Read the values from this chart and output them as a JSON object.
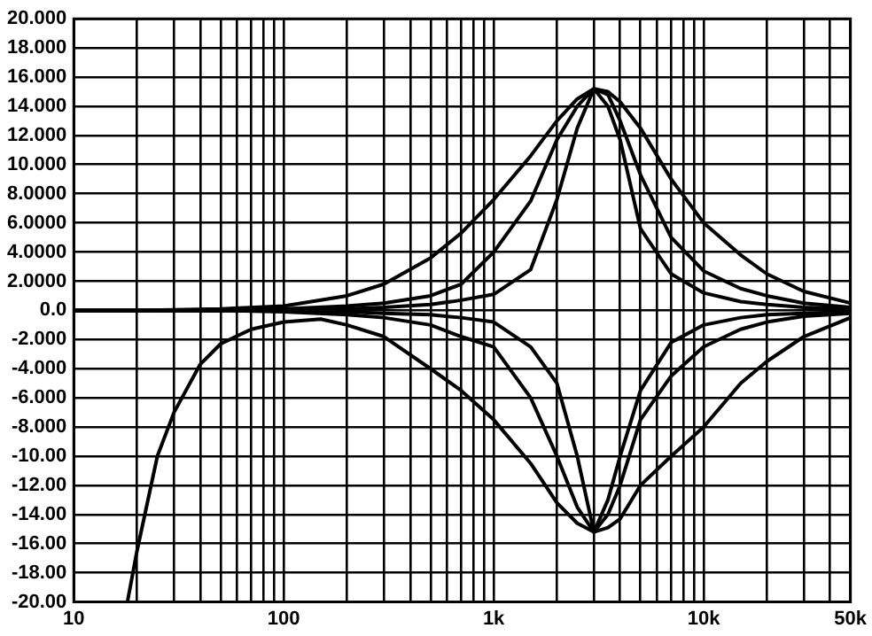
{
  "chart_data": {
    "type": "line",
    "log": "x",
    "grid": true,
    "legend": false,
    "xlim": [
      10,
      50000
    ],
    "xticks": [
      10,
      {
        "value": 20,
        "label": null
      },
      {
        "value": 30,
        "label": null
      },
      {
        "value": 40,
        "label": null
      },
      {
        "value": 50,
        "label": null
      },
      {
        "value": 60,
        "label": null
      },
      {
        "value": 70,
        "label": null
      },
      {
        "value": 80,
        "label": null
      },
      {
        "value": 90,
        "label": null
      },
      100,
      {
        "value": 200,
        "label": null
      },
      {
        "value": 300,
        "label": null
      },
      {
        "value": 400,
        "label": null
      },
      {
        "value": 500,
        "label": null
      },
      {
        "value": 600,
        "label": null
      },
      {
        "value": 700,
        "label": null
      },
      {
        "value": 800,
        "label": null
      },
      {
        "value": 900,
        "label": null
      },
      {
        "value": 1000,
        "label": "1k"
      },
      {
        "value": 2000,
        "label": null
      },
      {
        "value": 3000,
        "label": null
      },
      {
        "value": 4000,
        "label": null
      },
      {
        "value": 5000,
        "label": null
      },
      {
        "value": 6000,
        "label": null
      },
      {
        "value": 7000,
        "label": null
      },
      {
        "value": 8000,
        "label": null
      },
      {
        "value": 9000,
        "label": null
      },
      {
        "value": 10000,
        "label": "10k"
      },
      {
        "value": 20000,
        "label": null
      },
      {
        "value": 30000,
        "label": null
      },
      {
        "value": 40000,
        "label": null
      },
      {
        "value": 50000,
        "label": "50k"
      }
    ],
    "ylim": [
      -20,
      20
    ],
    "yticks": [
      {
        "value": 20,
        "label": "20.000"
      },
      {
        "value": 18,
        "label": "18.000"
      },
      {
        "value": 16,
        "label": "16.000"
      },
      {
        "value": 14,
        "label": "14.000"
      },
      {
        "value": 12,
        "label": "12.000"
      },
      {
        "value": 10,
        "label": "10.000"
      },
      {
        "value": 8,
        "label": "8.0000"
      },
      {
        "value": 6,
        "label": "6.0000"
      },
      {
        "value": 4,
        "label": "4.0000"
      },
      {
        "value": 2,
        "label": "2.0000"
      },
      {
        "value": 0,
        "label": "0.0"
      },
      {
        "value": -2,
        "label": "-2.000"
      },
      {
        "value": -4,
        "label": "-4.000"
      },
      {
        "value": -6,
        "label": "-6.000"
      },
      {
        "value": -8,
        "label": "-8.000"
      },
      {
        "value": -10,
        "label": "-10.00"
      },
      {
        "value": -12,
        "label": "-12.00"
      },
      {
        "value": -14,
        "label": "-14.00"
      },
      {
        "value": -16,
        "label": "-16.00"
      },
      {
        "value": -18,
        "label": "-18.00"
      },
      {
        "value": -20,
        "label": "-20.00"
      }
    ],
    "series": [
      {
        "color": "#000000",
        "x": [
          10,
          20,
          50,
          100,
          200,
          300,
          500,
          700,
          1000,
          1500,
          2000,
          2500,
          3000,
          3500,
          4000,
          5000,
          7000,
          10000,
          15000,
          20000,
          30000,
          50000
        ],
        "values": [
          0,
          0,
          0.1,
          0.3,
          1,
          1.8,
          3.6,
          5.3,
          7.6,
          10.6,
          13,
          14.5,
          15.2,
          15,
          14.3,
          12.5,
          9,
          6,
          3.8,
          2.5,
          1.3,
          0.5
        ]
      },
      {
        "color": "#000000",
        "x": [
          10,
          20,
          50,
          100,
          200,
          300,
          500,
          700,
          1000,
          1500,
          2000,
          2500,
          3000,
          3500,
          4000,
          5000,
          7000,
          10000,
          15000,
          20000,
          30000,
          50000
        ],
        "values": [
          0,
          0,
          0,
          0.1,
          0.3,
          0.5,
          1,
          1.8,
          4,
          7.5,
          11.7,
          14,
          15.2,
          14.8,
          13,
          9.3,
          5,
          2.7,
          1.5,
          1,
          0.5,
          0.2
        ]
      },
      {
        "color": "#000000",
        "x": [
          10,
          20,
          50,
          100,
          200,
          300,
          500,
          700,
          1000,
          1500,
          2000,
          2500,
          3000,
          3500,
          4000,
          5000,
          7000,
          10000,
          15000,
          20000,
          30000,
          50000
        ],
        "values": [
          0,
          0,
          0,
          0,
          0.1,
          0.2,
          0.4,
          0.7,
          1.1,
          2.8,
          7.6,
          12.5,
          15.2,
          14,
          11.7,
          5.6,
          2.5,
          1.2,
          0.6,
          0.4,
          0.2,
          0.1
        ]
      },
      {
        "color": "#000000",
        "x": [
          18,
          20,
          25,
          30,
          40,
          50,
          70,
          100,
          150,
          200,
          300,
          500,
          700,
          1000,
          1500,
          2000,
          2500,
          3000,
          3500,
          4000,
          5000,
          7000,
          10000,
          15000,
          20000,
          30000,
          50000
        ],
        "values": [
          -20,
          -16.5,
          -10,
          -7,
          -3.7,
          -2.3,
          -1.3,
          -0.8,
          -0.6,
          -1,
          -1.8,
          -4,
          -5.5,
          -7.5,
          -10.5,
          -13.2,
          -14.6,
          -15.2,
          -14.9,
          -14.3,
          -12,
          -10,
          -8,
          -5,
          -3.5,
          -1.8,
          -0.5
        ]
      },
      {
        "color": "#000000",
        "x": [
          10,
          20,
          50,
          100,
          200,
          300,
          500,
          700,
          1000,
          1500,
          2000,
          2500,
          3000,
          3500,
          4000,
          5000,
          7000,
          10000,
          15000,
          20000,
          30000,
          50000
        ],
        "values": [
          0,
          0,
          0,
          -0.1,
          -0.3,
          -0.5,
          -1,
          -1.8,
          -2.5,
          -6,
          -10,
          -13.5,
          -15.2,
          -14,
          -12,
          -7.5,
          -4.5,
          -2.5,
          -1.3,
          -0.8,
          -0.4,
          -0.2
        ]
      },
      {
        "color": "#000000",
        "x": [
          10,
          20,
          50,
          100,
          200,
          300,
          500,
          700,
          1000,
          1500,
          2000,
          2500,
          3000,
          3500,
          4000,
          5000,
          7000,
          10000,
          15000,
          20000,
          30000,
          50000
        ],
        "values": [
          0,
          0,
          0,
          0,
          -0.1,
          -0.2,
          -0.3,
          -0.5,
          -0.8,
          -2.5,
          -5,
          -10,
          -15.2,
          -13,
          -10,
          -5.5,
          -2.2,
          -1,
          -0.5,
          -0.3,
          -0.2,
          -0.1
        ]
      }
    ]
  }
}
